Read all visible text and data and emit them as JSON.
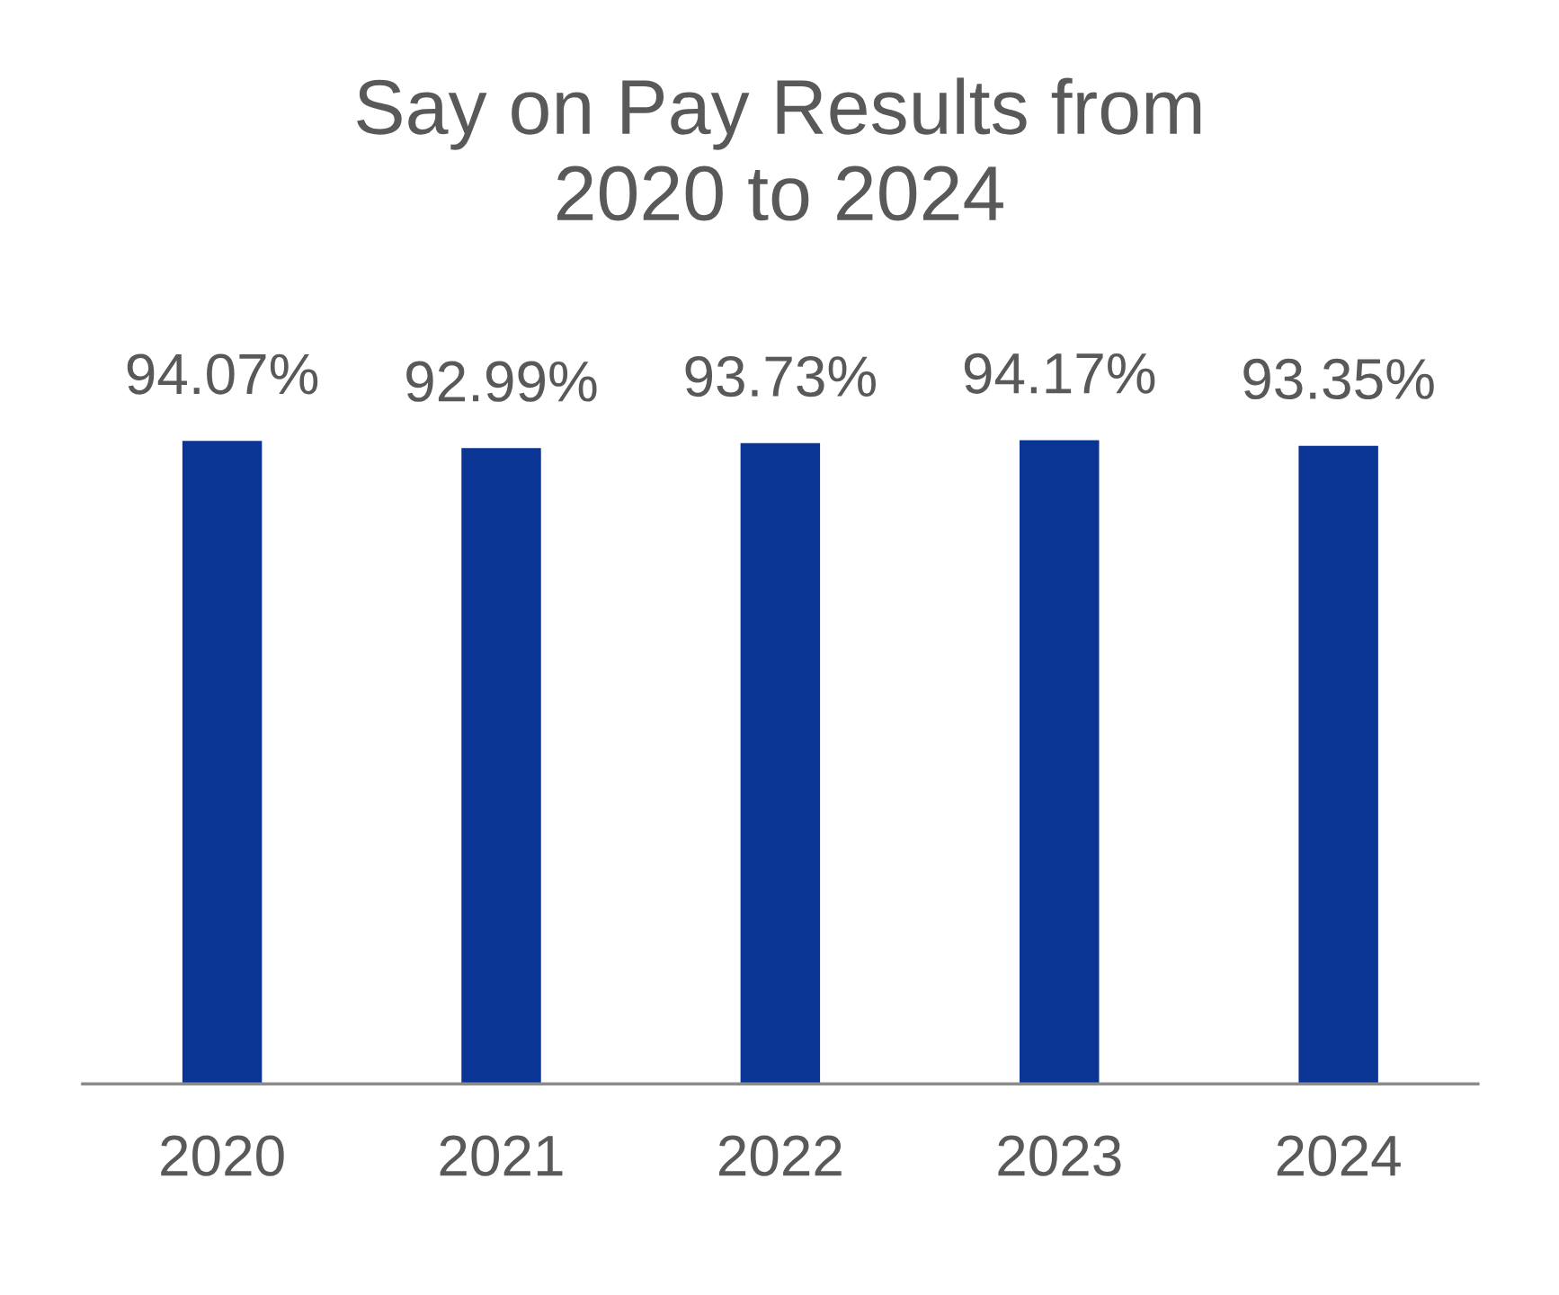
{
  "chart_data": {
    "type": "bar",
    "title": "Say on Pay Results from\n2020 to 2024",
    "categories": [
      "2020",
      "2021",
      "2022",
      "2023",
      "2024"
    ],
    "values": [
      94.07,
      92.99,
      93.73,
      94.17,
      93.35
    ],
    "value_labels": [
      "94.07%",
      "92.99%",
      "93.73%",
      "94.17%",
      "93.35%"
    ],
    "color": "#0a3595",
    "tick_labels": "x",
    "grid": false,
    "legend": false
  }
}
